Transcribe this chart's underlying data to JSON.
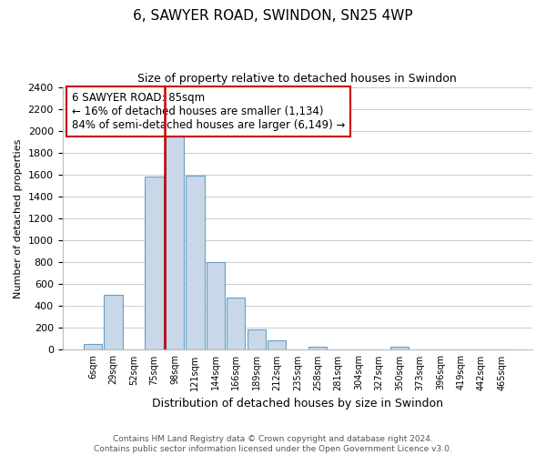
{
  "title": "6, SAWYER ROAD, SWINDON, SN25 4WP",
  "subtitle": "Size of property relative to detached houses in Swindon",
  "xlabel": "Distribution of detached houses by size in Swindon",
  "ylabel": "Number of detached properties",
  "bar_color": "#c8d8e8",
  "bar_edge_color": "#6a9fc0",
  "categories": [
    "6sqm",
    "29sqm",
    "52sqm",
    "75sqm",
    "98sqm",
    "121sqm",
    "144sqm",
    "166sqm",
    "189sqm",
    "212sqm",
    "235sqm",
    "258sqm",
    "281sqm",
    "304sqm",
    "327sqm",
    "350sqm",
    "373sqm",
    "396sqm",
    "419sqm",
    "442sqm",
    "465sqm"
  ],
  "values": [
    55,
    500,
    0,
    1580,
    1950,
    1590,
    800,
    480,
    190,
    90,
    0,
    30,
    0,
    0,
    0,
    25,
    0,
    0,
    0,
    0,
    0
  ],
  "ylim": [
    0,
    2400
  ],
  "yticks": [
    0,
    200,
    400,
    600,
    800,
    1000,
    1200,
    1400,
    1600,
    1800,
    2000,
    2200,
    2400
  ],
  "annotation_box_text": "6 SAWYER ROAD: 85sqm\n← 16% of detached houses are smaller (1,134)\n84% of semi-detached houses are larger (6,149) →",
  "annotation_box_color": "#ffffff",
  "annotation_box_edge_color": "#cc0000",
  "property_line_color": "#cc0000",
  "footer_line1": "Contains HM Land Registry data © Crown copyright and database right 2024.",
  "footer_line2": "Contains public sector information licensed under the Open Government Licence v3.0.",
  "background_color": "#ffffff",
  "grid_color": "#cccccc",
  "title_fontsize": 11,
  "subtitle_fontsize": 9,
  "ylabel_fontsize": 8,
  "xlabel_fontsize": 9,
  "tick_fontsize": 8,
  "xtick_fontsize": 7,
  "footer_fontsize": 6.5
}
